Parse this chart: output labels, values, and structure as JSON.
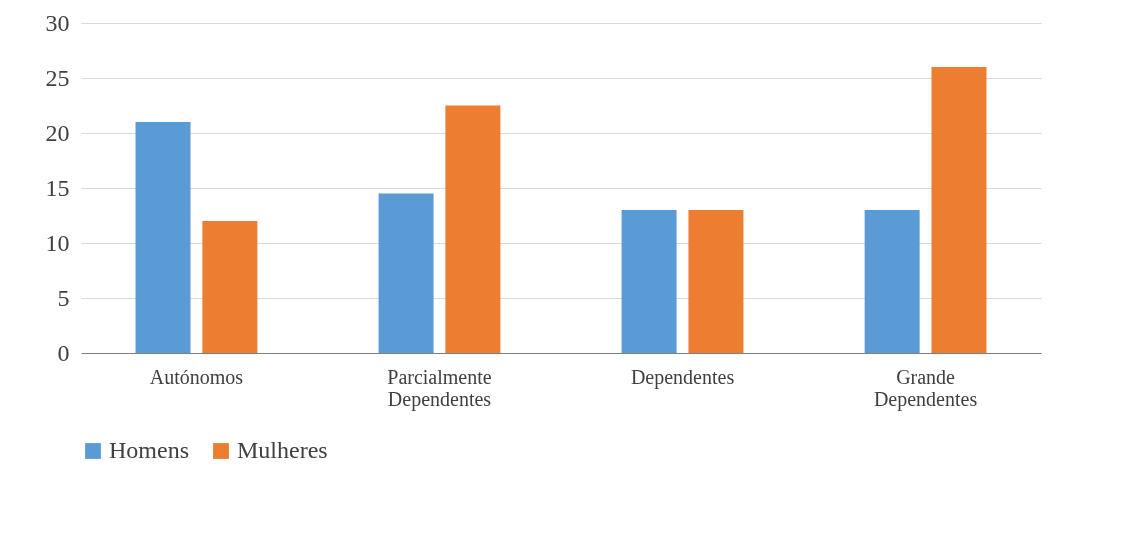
{
  "chart_data": {
    "type": "bar",
    "categories": [
      "Autónomos",
      "Parcialmente Dependentes",
      "Dependentes",
      "Grande Dependentes"
    ],
    "series": [
      {
        "name": "Homens",
        "color": "#5b9bd5",
        "values": [
          21,
          14.5,
          13,
          13
        ]
      },
      {
        "name": "Mulheres",
        "color": "#ed7d31",
        "values": [
          12,
          22.5,
          13,
          26
        ]
      }
    ],
    "ylim": [
      0,
      30
    ],
    "yticks": [
      0,
      5,
      10,
      15,
      20,
      25,
      30
    ],
    "grid": "y",
    "legend": "bottom"
  }
}
